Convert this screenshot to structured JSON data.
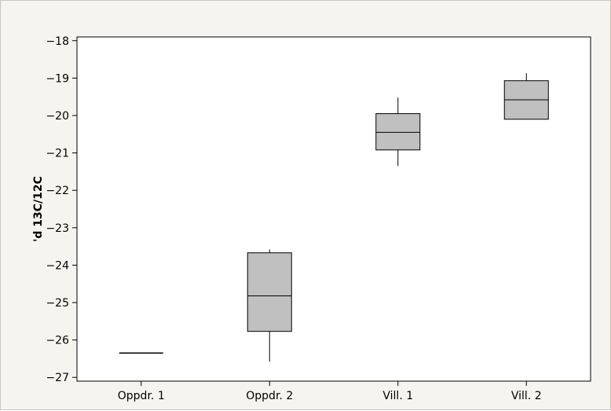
{
  "chart_data": {
    "type": "box",
    "title": "",
    "xlabel": "",
    "ylabel": "'d 13C/12C",
    "ylim": [
      -27.1,
      -17.9
    ],
    "yticks": [
      -18,
      -19,
      -20,
      -21,
      -22,
      -23,
      -24,
      -25,
      -26,
      -27
    ],
    "grid": false,
    "categories": [
      "Oppdr. 1",
      "Oppdr. 2",
      "Vill. 1",
      "Vill. 2"
    ],
    "boxes": [
      {
        "category": "Oppdr. 1",
        "min": -26.35,
        "q1": -26.35,
        "median": -26.35,
        "q3": -26.35,
        "max": -26.35
      },
      {
        "category": "Oppdr. 2",
        "min": -26.58,
        "q1": -25.77,
        "median": -24.82,
        "q3": -23.67,
        "max": -23.58
      },
      {
        "category": "Vill. 1",
        "min": -21.35,
        "q1": -20.92,
        "median": -20.45,
        "q3": -19.95,
        "max": -19.52
      },
      {
        "category": "Vill. 2",
        "min": -20.1,
        "q1": -20.1,
        "median": -19.58,
        "q3": -19.07,
        "max": -18.87
      }
    ],
    "colors": {
      "box_fill": "#c0c0c0",
      "stroke": "#000000",
      "background": "#f6f4ee",
      "plot_background": "#ffffff"
    }
  }
}
